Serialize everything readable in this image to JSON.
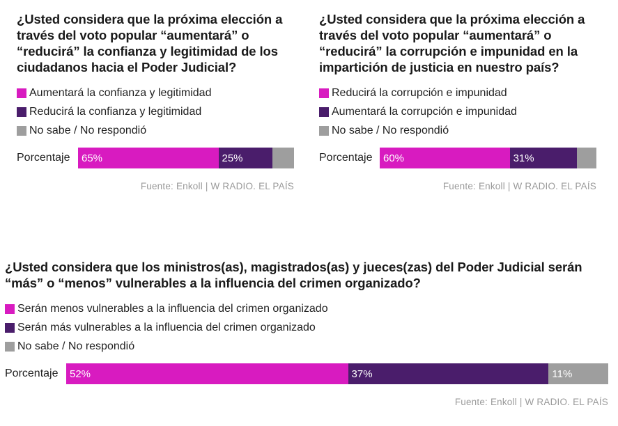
{
  "colors": {
    "first": "#d81bc0",
    "second": "#4a1d6b",
    "third": "#9e9e9e"
  },
  "chart_data": [
    {
      "type": "bar",
      "title": "¿Usted considera que la próxima elección a través del voto popular “aumentará” o “reducirá” la confianza y legitimidad de los ciudadanos hacia el Poder Judicial?",
      "categories": [
        "Porcentaje"
      ],
      "series": [
        {
          "name": "Aumentará la confianza y legitimidad",
          "values": [
            65
          ],
          "label": "65%"
        },
        {
          "name": "Reducirá la confianza y legitimidad",
          "values": [
            25
          ],
          "label": "25%"
        },
        {
          "name": "No sabe / No respondió",
          "values": [
            10
          ],
          "label": ""
        }
      ],
      "source": "Fuente: Enkoll | W RADIO. EL PAÍS"
    },
    {
      "type": "bar",
      "title": "¿Usted considera que la próxima elección a través del voto popular “aumentará” o “reducirá” la corrupción e impunidad en la impartición de justicia en nuestro país?",
      "categories": [
        "Porcentaje"
      ],
      "series": [
        {
          "name": "Reducirá la corrupción e impunidad",
          "values": [
            60
          ],
          "label": "60%"
        },
        {
          "name": "Aumentará la corrupción e impunidad",
          "values": [
            31
          ],
          "label": "31%"
        },
        {
          "name": "No sabe / No respondió",
          "values": [
            9
          ],
          "label": ""
        }
      ],
      "source": "Fuente: Enkoll | W RADIO. EL PAÍS"
    },
    {
      "type": "bar",
      "title": "¿Usted considera que los ministros(as), magistrados(as) y jueces(zas) del Poder Judicial serán “más” o “menos” vulnerables a la influencia del crimen organizado?",
      "categories": [
        "Porcentaje"
      ],
      "series": [
        {
          "name": "Serán menos vulnerables a la influencia del crimen organizado",
          "values": [
            52
          ],
          "label": "52%"
        },
        {
          "name": "Serán más vulnerables a la influencia del crimen organizado",
          "values": [
            37
          ],
          "label": "37%"
        },
        {
          "name": "No sabe / No respondió",
          "values": [
            11
          ],
          "label": "11%"
        }
      ],
      "source": "Fuente: Enkoll | W RADIO. EL PAÍS"
    }
  ]
}
